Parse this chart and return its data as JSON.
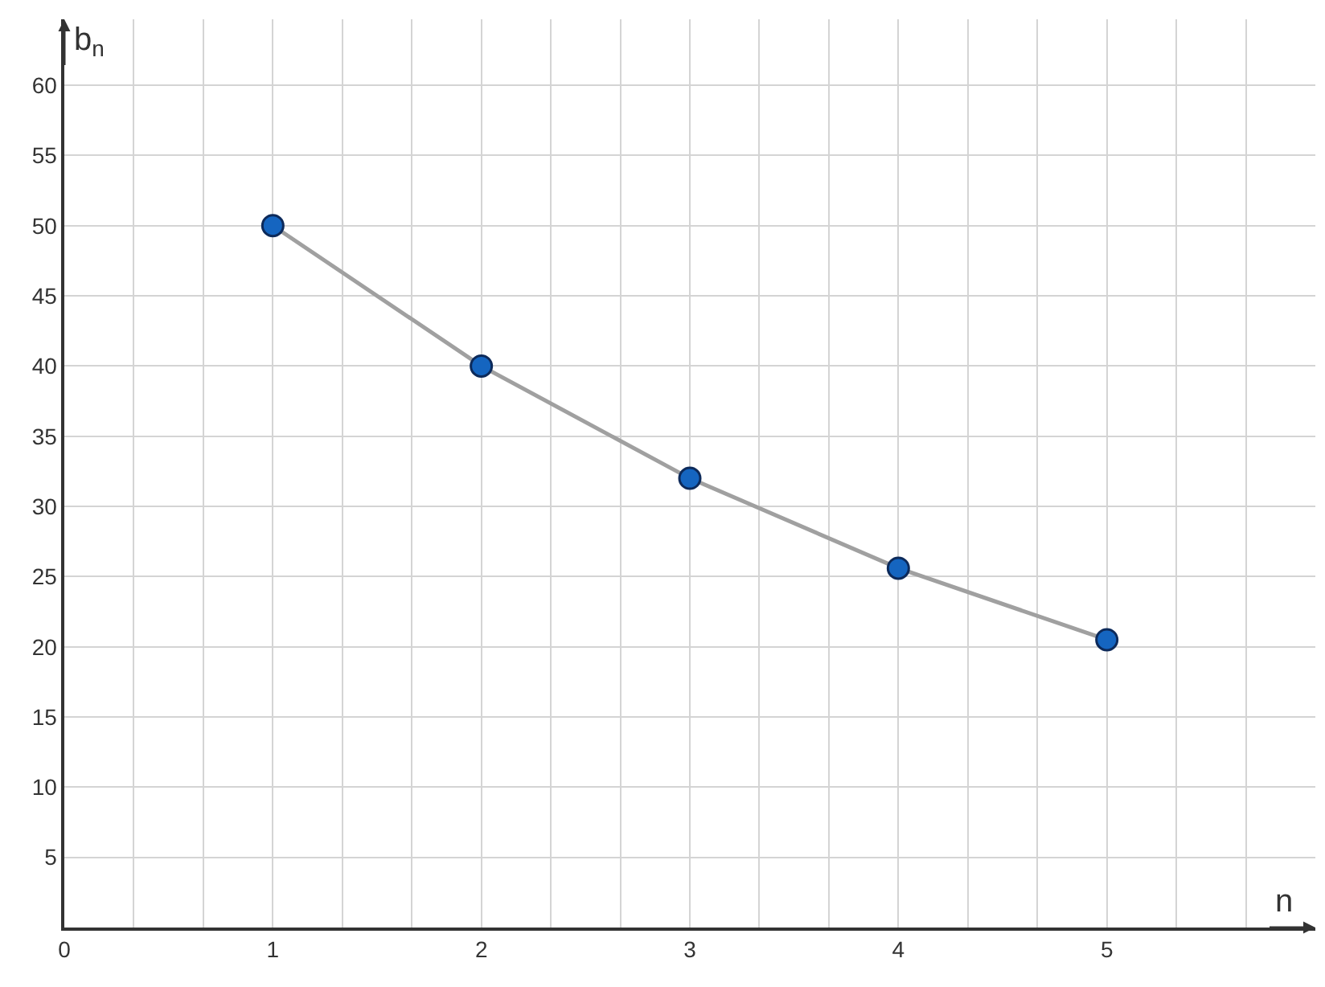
{
  "chart_data": {
    "type": "line",
    "xlabel": "n",
    "ylabel": "b$_{n}$",
    "x": [
      1,
      2,
      3,
      4,
      5
    ],
    "series": [
      {
        "color": "#1565c0",
        "values": [
          50,
          40,
          32,
          25.6,
          20.5
        ]
      }
    ],
    "xlim": [
      0,
      6
    ],
    "ylim": [
      0,
      64.7
    ],
    "xticks": [
      {
        "value": 0,
        "label": "0"
      },
      {
        "value": 0.333,
        "label": null
      },
      {
        "value": 0.667,
        "label": null
      },
      1,
      {
        "value": 1.333,
        "label": null
      },
      {
        "value": 1.667,
        "label": null
      },
      2,
      {
        "value": 2.333,
        "label": null
      },
      {
        "value": 2.667,
        "label": null
      },
      3,
      {
        "value": 3.333,
        "label": null
      },
      {
        "value": 3.667,
        "label": null
      },
      4,
      {
        "value": 4.333,
        "label": null
      },
      {
        "value": 4.667,
        "label": null
      },
      5,
      {
        "value": 5.333,
        "label": null
      },
      {
        "value": 5.667,
        "label": null
      }
    ],
    "yticks": [
      5,
      10,
      15,
      20,
      25,
      30,
      35,
      40,
      45,
      50,
      55,
      60
    ],
    "grid": true,
    "marker": "circle",
    "line_style": "solid",
    "legend": false
  }
}
